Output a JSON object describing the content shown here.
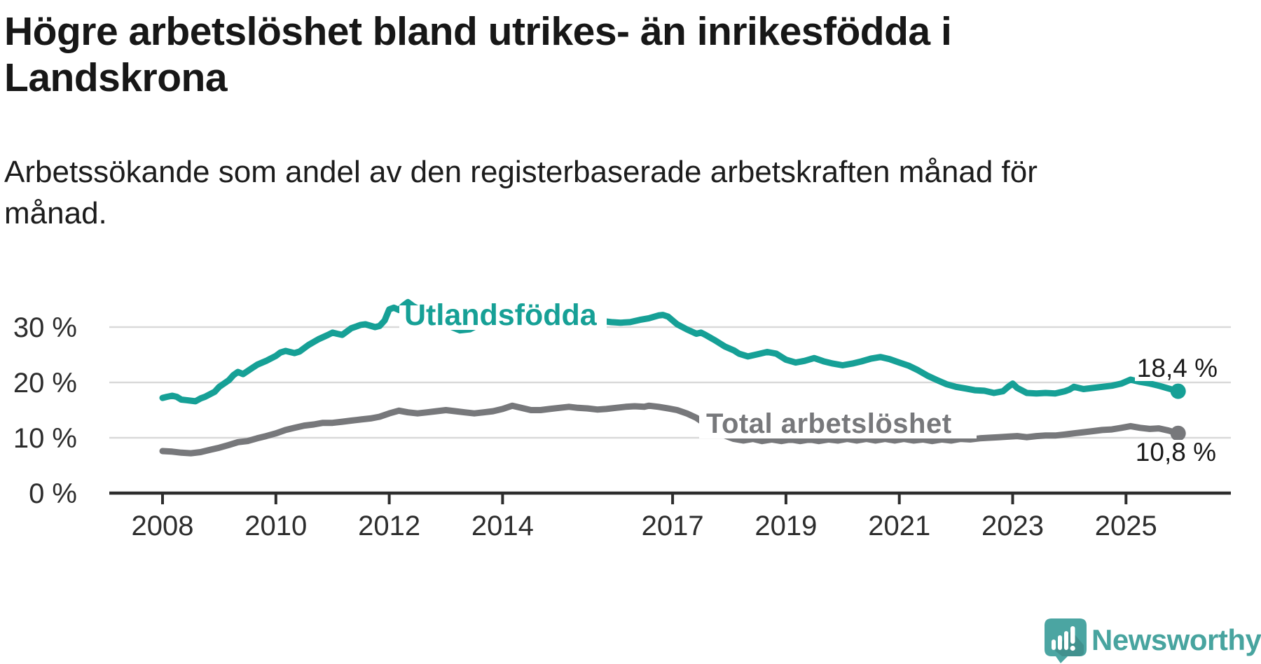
{
  "header": {
    "title_lines": [
      "Högre arbetslöshet bland utrikes- än inrikesfödda i",
      "Landskrona"
    ],
    "subtitle_lines": [
      "Arbetssökande som andel av den registerbaserade arbetskraften månad för",
      "månad."
    ]
  },
  "footer": {
    "brand": "Newsworthy",
    "logo_icon": "newsworthy-speech-bubble-bar-chart-icon"
  },
  "colors": {
    "background": "#ffffff",
    "title_text": "#171717",
    "axis": "#2d2d2d",
    "gridline": "#d9d9d9",
    "utlandsfodda_line": "#16a096",
    "total_line": "#77787b",
    "end_label_text": "#1a1a1a",
    "brand_teal": "#4ba5a2"
  },
  "chart_data": {
    "type": "line",
    "title": "Högre arbetslöshet bland utrikes- än inrikesfödda i Landskrona",
    "subtitle": "Arbetssökande som andel av den registerbaserade arbetskraften månad för månad.",
    "x_axis": {
      "tick_years": [
        2008,
        2010,
        2012,
        2014,
        2017,
        2019,
        2021,
        2023,
        2025
      ],
      "tick_labels": [
        "2008",
        "2010",
        "2012",
        "2014",
        "2017",
        "2019",
        "2021",
        "2023",
        "2025"
      ],
      "start": 2008.0,
      "end": 2025.92,
      "grid": false
    },
    "y_axis": {
      "tick_values": [
        0,
        10,
        20,
        30
      ],
      "tick_labels": [
        "0 %",
        "10 %",
        "20 %",
        "30 %"
      ],
      "unit": "%",
      "range": [
        0,
        36
      ],
      "grid": true
    },
    "legend_position": "inline-labels-on-lines",
    "series": [
      {
        "name": "Utlandsfödda",
        "color": "#16a096",
        "end_value": 18.4,
        "end_value_label": "18,4 %",
        "points": [
          [
            2008.0,
            17.2
          ],
          [
            2008.08,
            17.4
          ],
          [
            2008.17,
            17.6
          ],
          [
            2008.25,
            17.4
          ],
          [
            2008.33,
            16.9
          ],
          [
            2008.42,
            16.8
          ],
          [
            2008.58,
            16.6
          ],
          [
            2008.67,
            17.1
          ],
          [
            2008.75,
            17.4
          ],
          [
            2008.92,
            18.3
          ],
          [
            2009.0,
            19.2
          ],
          [
            2009.17,
            20.4
          ],
          [
            2009.25,
            21.3
          ],
          [
            2009.33,
            21.9
          ],
          [
            2009.42,
            21.5
          ],
          [
            2009.58,
            22.6
          ],
          [
            2009.67,
            23.2
          ],
          [
            2009.83,
            23.9
          ],
          [
            2010.0,
            24.8
          ],
          [
            2010.08,
            25.4
          ],
          [
            2010.17,
            25.7
          ],
          [
            2010.33,
            25.3
          ],
          [
            2010.42,
            25.6
          ],
          [
            2010.58,
            26.8
          ],
          [
            2010.75,
            27.8
          ],
          [
            2010.92,
            28.6
          ],
          [
            2011.0,
            29.0
          ],
          [
            2011.08,
            28.8
          ],
          [
            2011.17,
            28.6
          ],
          [
            2011.33,
            29.8
          ],
          [
            2011.5,
            30.4
          ],
          [
            2011.58,
            30.5
          ],
          [
            2011.75,
            30.0
          ],
          [
            2011.83,
            30.2
          ],
          [
            2011.92,
            31.2
          ],
          [
            2012.0,
            33.2
          ],
          [
            2012.08,
            33.5
          ],
          [
            2012.17,
            33.1
          ],
          [
            2012.25,
            33.9
          ],
          [
            2012.33,
            34.5
          ],
          [
            2012.42,
            33.8
          ],
          [
            2012.58,
            32.9
          ],
          [
            2012.75,
            32.0
          ],
          [
            2012.92,
            31.1
          ],
          [
            2013.08,
            30.1
          ],
          [
            2013.25,
            29.4
          ],
          [
            2013.42,
            29.6
          ],
          [
            2013.58,
            30.4
          ],
          [
            2013.75,
            31.2
          ],
          [
            2013.92,
            31.8
          ],
          [
            2014.08,
            32.2
          ],
          [
            2014.25,
            32.4
          ],
          [
            2014.42,
            32.1
          ],
          [
            2014.58,
            31.8
          ],
          [
            2014.75,
            31.6
          ],
          [
            2014.92,
            31.4
          ],
          [
            2015.08,
            31.3
          ],
          [
            2015.25,
            31.2
          ],
          [
            2015.42,
            31.0
          ],
          [
            2015.58,
            31.0
          ],
          [
            2015.75,
            31.1
          ],
          [
            2015.92,
            30.9
          ],
          [
            2016.08,
            30.8
          ],
          [
            2016.25,
            30.9
          ],
          [
            2016.42,
            31.3
          ],
          [
            2016.58,
            31.6
          ],
          [
            2016.75,
            32.1
          ],
          [
            2016.83,
            32.2
          ],
          [
            2016.92,
            31.9
          ],
          [
            2017.0,
            31.2
          ],
          [
            2017.08,
            30.5
          ],
          [
            2017.25,
            29.6
          ],
          [
            2017.42,
            28.8
          ],
          [
            2017.5,
            29.0
          ],
          [
            2017.58,
            28.6
          ],
          [
            2017.75,
            27.6
          ],
          [
            2017.92,
            26.5
          ],
          [
            2018.08,
            25.8
          ],
          [
            2018.17,
            25.2
          ],
          [
            2018.33,
            24.7
          ],
          [
            2018.5,
            25.1
          ],
          [
            2018.67,
            25.5
          ],
          [
            2018.83,
            25.2
          ],
          [
            2019.0,
            24.1
          ],
          [
            2019.17,
            23.6
          ],
          [
            2019.33,
            23.9
          ],
          [
            2019.5,
            24.4
          ],
          [
            2019.67,
            23.8
          ],
          [
            2019.83,
            23.4
          ],
          [
            2020.0,
            23.1
          ],
          [
            2020.17,
            23.4
          ],
          [
            2020.33,
            23.8
          ],
          [
            2020.5,
            24.3
          ],
          [
            2020.67,
            24.6
          ],
          [
            2020.83,
            24.2
          ],
          [
            2021.0,
            23.6
          ],
          [
            2021.17,
            23.0
          ],
          [
            2021.33,
            22.2
          ],
          [
            2021.5,
            21.2
          ],
          [
            2021.67,
            20.4
          ],
          [
            2021.83,
            19.7
          ],
          [
            2022.0,
            19.2
          ],
          [
            2022.17,
            18.9
          ],
          [
            2022.33,
            18.6
          ],
          [
            2022.5,
            18.5
          ],
          [
            2022.67,
            18.1
          ],
          [
            2022.83,
            18.4
          ],
          [
            2022.92,
            19.2
          ],
          [
            2023.0,
            19.8
          ],
          [
            2023.08,
            19.0
          ],
          [
            2023.25,
            18.1
          ],
          [
            2023.42,
            18.0
          ],
          [
            2023.58,
            18.1
          ],
          [
            2023.75,
            18.0
          ],
          [
            2023.92,
            18.4
          ],
          [
            2024.0,
            18.7
          ],
          [
            2024.08,
            19.2
          ],
          [
            2024.25,
            18.8
          ],
          [
            2024.42,
            19.0
          ],
          [
            2024.58,
            19.2
          ],
          [
            2024.75,
            19.4
          ],
          [
            2024.92,
            19.8
          ],
          [
            2025.08,
            20.5
          ],
          [
            2025.25,
            20.1
          ],
          [
            2025.42,
            19.8
          ],
          [
            2025.58,
            19.4
          ],
          [
            2025.75,
            18.9
          ],
          [
            2025.92,
            18.4
          ]
        ]
      },
      {
        "name": "Total arbetslöshet",
        "color": "#77787b",
        "end_value": 10.8,
        "end_value_label": "10,8 %",
        "points": [
          [
            2008.0,
            7.6
          ],
          [
            2008.17,
            7.5
          ],
          [
            2008.33,
            7.3
          ],
          [
            2008.5,
            7.2
          ],
          [
            2008.67,
            7.4
          ],
          [
            2008.83,
            7.8
          ],
          [
            2009.0,
            8.2
          ],
          [
            2009.17,
            8.7
          ],
          [
            2009.33,
            9.2
          ],
          [
            2009.5,
            9.4
          ],
          [
            2009.67,
            9.9
          ],
          [
            2009.83,
            10.3
          ],
          [
            2010.0,
            10.8
          ],
          [
            2010.17,
            11.4
          ],
          [
            2010.33,
            11.8
          ],
          [
            2010.5,
            12.2
          ],
          [
            2010.67,
            12.4
          ],
          [
            2010.83,
            12.7
          ],
          [
            2011.0,
            12.7
          ],
          [
            2011.17,
            12.9
          ],
          [
            2011.33,
            13.1
          ],
          [
            2011.5,
            13.3
          ],
          [
            2011.67,
            13.5
          ],
          [
            2011.83,
            13.8
          ],
          [
            2012.0,
            14.4
          ],
          [
            2012.17,
            14.9
          ],
          [
            2012.33,
            14.6
          ],
          [
            2012.5,
            14.4
          ],
          [
            2012.67,
            14.6
          ],
          [
            2012.83,
            14.8
          ],
          [
            2013.0,
            15.0
          ],
          [
            2013.17,
            14.8
          ],
          [
            2013.33,
            14.6
          ],
          [
            2013.5,
            14.4
          ],
          [
            2013.67,
            14.6
          ],
          [
            2013.83,
            14.8
          ],
          [
            2014.0,
            15.2
          ],
          [
            2014.17,
            15.8
          ],
          [
            2014.33,
            15.4
          ],
          [
            2014.5,
            15.0
          ],
          [
            2014.67,
            15.0
          ],
          [
            2014.83,
            15.2
          ],
          [
            2015.0,
            15.4
          ],
          [
            2015.17,
            15.6
          ],
          [
            2015.33,
            15.4
          ],
          [
            2015.5,
            15.3
          ],
          [
            2015.67,
            15.1
          ],
          [
            2015.83,
            15.2
          ],
          [
            2016.0,
            15.4
          ],
          [
            2016.17,
            15.6
          ],
          [
            2016.33,
            15.7
          ],
          [
            2016.5,
            15.6
          ],
          [
            2016.58,
            15.8
          ],
          [
            2016.75,
            15.6
          ],
          [
            2016.92,
            15.3
          ],
          [
            2017.08,
            15.0
          ],
          [
            2017.25,
            14.4
          ],
          [
            2017.42,
            13.6
          ],
          [
            2017.58,
            12.5
          ],
          [
            2017.75,
            11.4
          ],
          [
            2017.92,
            10.4
          ],
          [
            2018.08,
            9.8
          ],
          [
            2018.25,
            9.5
          ],
          [
            2018.42,
            9.8
          ],
          [
            2018.58,
            9.4
          ],
          [
            2018.75,
            9.7
          ],
          [
            2018.92,
            9.4
          ],
          [
            2019.08,
            9.7
          ],
          [
            2019.25,
            9.4
          ],
          [
            2019.42,
            9.7
          ],
          [
            2019.58,
            9.4
          ],
          [
            2019.75,
            9.7
          ],
          [
            2019.92,
            9.5
          ],
          [
            2020.08,
            9.8
          ],
          [
            2020.25,
            9.5
          ],
          [
            2020.42,
            9.8
          ],
          [
            2020.58,
            9.5
          ],
          [
            2020.75,
            9.8
          ],
          [
            2020.92,
            9.5
          ],
          [
            2021.08,
            9.8
          ],
          [
            2021.25,
            9.5
          ],
          [
            2021.42,
            9.7
          ],
          [
            2021.58,
            9.4
          ],
          [
            2021.75,
            9.7
          ],
          [
            2021.92,
            9.5
          ],
          [
            2022.08,
            9.8
          ],
          [
            2022.25,
            9.7
          ],
          [
            2022.42,
            9.9
          ],
          [
            2022.58,
            10.0
          ],
          [
            2022.75,
            10.1
          ],
          [
            2022.92,
            10.2
          ],
          [
            2023.08,
            10.3
          ],
          [
            2023.25,
            10.1
          ],
          [
            2023.42,
            10.3
          ],
          [
            2023.58,
            10.4
          ],
          [
            2023.75,
            10.4
          ],
          [
            2023.92,
            10.6
          ],
          [
            2024.08,
            10.8
          ],
          [
            2024.25,
            11.0
          ],
          [
            2024.42,
            11.2
          ],
          [
            2024.58,
            11.4
          ],
          [
            2024.75,
            11.5
          ],
          [
            2024.92,
            11.8
          ],
          [
            2025.08,
            12.1
          ],
          [
            2025.25,
            11.8
          ],
          [
            2025.42,
            11.6
          ],
          [
            2025.58,
            11.7
          ],
          [
            2025.75,
            11.3
          ],
          [
            2025.92,
            10.8
          ]
        ]
      }
    ]
  }
}
